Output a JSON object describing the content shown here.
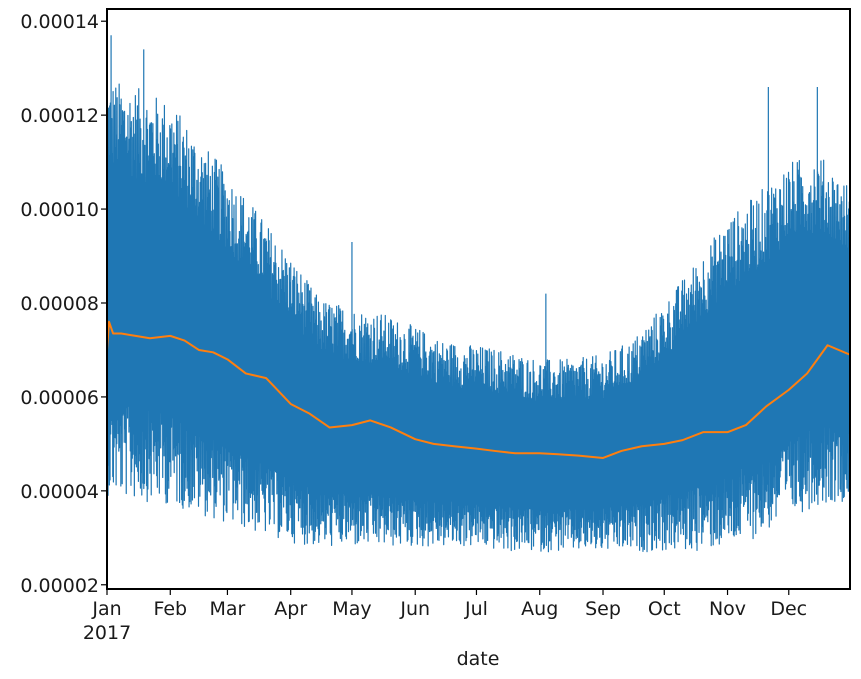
{
  "chart_data": {
    "type": "line",
    "title": "",
    "xlabel": "date",
    "ylabel": "",
    "x_year_label": "2017",
    "xlim": [
      "2017-01-01",
      "2017-12-31"
    ],
    "ylim": [
      1.91e-05,
      0.0001426
    ],
    "grid": false,
    "legend": "none",
    "x_ticks": [
      {
        "date": "2017-01-01",
        "label": "Jan"
      },
      {
        "date": "2017-02-01",
        "label": "Feb"
      },
      {
        "date": "2017-03-01",
        "label": "Mar"
      },
      {
        "date": "2017-04-01",
        "label": "Apr"
      },
      {
        "date": "2017-05-01",
        "label": "May"
      },
      {
        "date": "2017-06-01",
        "label": "Jun"
      },
      {
        "date": "2017-07-01",
        "label": "Jul"
      },
      {
        "date": "2017-08-01",
        "label": "Aug"
      },
      {
        "date": "2017-09-01",
        "label": "Sep"
      },
      {
        "date": "2017-10-01",
        "label": "Oct"
      },
      {
        "date": "2017-11-01",
        "label": "Nov"
      },
      {
        "date": "2017-12-01",
        "label": "Dec"
      }
    ],
    "y_ticks": [
      {
        "value": 2e-05,
        "label": "0.00002"
      },
      {
        "value": 4e-05,
        "label": "0.00004"
      },
      {
        "value": 6e-05,
        "label": "0.00006"
      },
      {
        "value": 8e-05,
        "label": "0.00008"
      },
      {
        "value": 0.0001,
        "label": "0.00010"
      },
      {
        "value": 0.00012,
        "label": "0.00012"
      },
      {
        "value": 0.00014,
        "label": "0.00014"
      }
    ],
    "series": [
      {
        "name": "",
        "color": "#1f77b4",
        "style": "dense-oscillating",
        "x": [
          "2017-01-01",
          "2017-01-15",
          "2017-02-01",
          "2017-02-15",
          "2017-03-01",
          "2017-03-15",
          "2017-04-01",
          "2017-04-15",
          "2017-05-01",
          "2017-05-15",
          "2017-06-01",
          "2017-06-15",
          "2017-07-01",
          "2017-07-15",
          "2017-08-01",
          "2017-08-15",
          "2017-09-01",
          "2017-09-15",
          "2017-10-01",
          "2017-10-15",
          "2017-11-01",
          "2017-11-15",
          "2017-12-01",
          "2017-12-15",
          "2017-12-31"
        ],
        "upper": [
          0.000128,
          0.000126,
          0.000123,
          0.000115,
          0.000108,
          0.0001,
          9e-05,
          8.1e-05,
          7.9e-05,
          7.8e-05,
          7.5e-05,
          7.2e-05,
          7.1e-05,
          7e-05,
          6.8e-05,
          6.8e-05,
          6.9e-05,
          7.2e-05,
          8e-05,
          8.8e-05,
          9.8e-05,
          0.000103,
          0.00011,
          0.000112,
          0.000105
        ],
        "lower": [
          3.9e-05,
          3.8e-05,
          3.7e-05,
          3.5e-05,
          3.3e-05,
          3.1e-05,
          2.9e-05,
          2.8e-05,
          2.8e-05,
          2.8e-05,
          2.8e-05,
          2.8e-05,
          2.8e-05,
          2.7e-05,
          2.7e-05,
          2.7e-05,
          2.7e-05,
          2.7e-05,
          2.7e-05,
          2.7e-05,
          2.8e-05,
          3e-05,
          3.4e-05,
          3.7e-05,
          3.8e-05
        ],
        "peaks": [
          {
            "x": "2017-01-03",
            "y": 0.000137
          },
          {
            "x": "2017-01-19",
            "y": 0.000134
          },
          {
            "x": "2017-05-01",
            "y": 9.3e-05
          },
          {
            "x": "2017-08-04",
            "y": 8.2e-05
          },
          {
            "x": "2017-11-21",
            "y": 0.000126
          },
          {
            "x": "2017-12-15",
            "y": 0.000126
          }
        ]
      },
      {
        "name": "",
        "color": "#ff7f0e",
        "style": "line",
        "x": [
          "2017-01-01",
          "2017-01-02",
          "2017-01-04",
          "2017-01-08",
          "2017-01-15",
          "2017-01-22",
          "2017-02-01",
          "2017-02-08",
          "2017-02-15",
          "2017-02-22",
          "2017-03-01",
          "2017-03-10",
          "2017-03-20",
          "2017-04-01",
          "2017-04-10",
          "2017-04-20",
          "2017-05-01",
          "2017-05-10",
          "2017-05-20",
          "2017-06-01",
          "2017-06-10",
          "2017-06-20",
          "2017-07-01",
          "2017-07-10",
          "2017-07-20",
          "2017-08-01",
          "2017-08-10",
          "2017-08-20",
          "2017-09-01",
          "2017-09-10",
          "2017-09-20",
          "2017-10-01",
          "2017-10-10",
          "2017-10-20",
          "2017-11-01",
          "2017-11-10",
          "2017-11-20",
          "2017-12-01",
          "2017-12-10",
          "2017-12-20",
          "2017-12-31"
        ],
        "y": [
          7e-05,
          7.6e-05,
          7.35e-05,
          7.35e-05,
          7.3e-05,
          7.25e-05,
          7.3e-05,
          7.2e-05,
          7e-05,
          6.95e-05,
          6.8e-05,
          6.5e-05,
          6.4e-05,
          5.85e-05,
          5.65e-05,
          5.35e-05,
          5.4e-05,
          5.5e-05,
          5.35e-05,
          5.1e-05,
          5e-05,
          4.95e-05,
          4.9e-05,
          4.85e-05,
          4.8e-05,
          4.8e-05,
          4.78e-05,
          4.75e-05,
          4.7e-05,
          4.85e-05,
          4.95e-05,
          5e-05,
          5.08e-05,
          5.25e-05,
          5.25e-05,
          5.4e-05,
          5.8e-05,
          6.15e-05,
          6.5e-05,
          7.1e-05,
          6.9e-05
        ]
      }
    ]
  }
}
